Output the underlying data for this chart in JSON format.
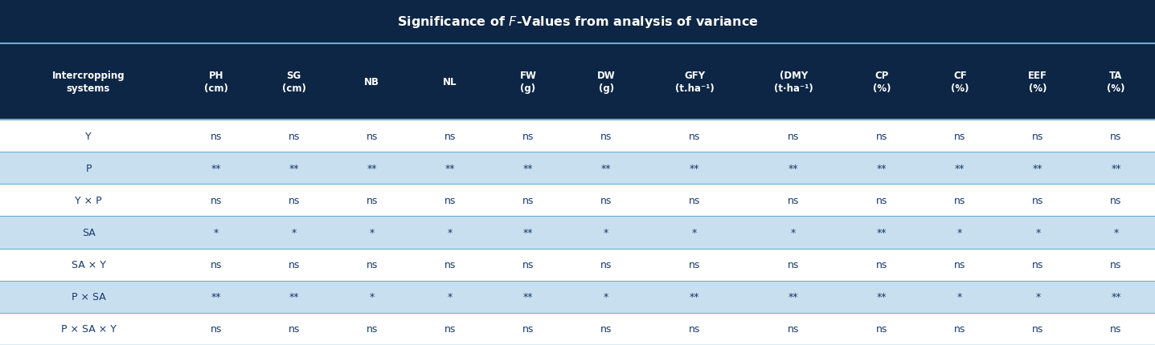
{
  "col_labels": [
    "Intercropping\nsystems",
    "PH\n(cm)",
    "SG\n(cm)",
    "NB",
    "NL",
    "FW\n(g)",
    "DW\n(g)",
    "GFY\n(t.ha⁻¹)",
    "(DMY\n(t·ha⁻¹)",
    "CP\n(%)",
    "CF\n(%)",
    "EEF\n(%)",
    "TA\n(%)"
  ],
  "rows": [
    [
      "Y",
      "ns",
      "ns",
      "ns",
      "ns",
      "ns",
      "ns",
      "ns",
      "ns",
      "ns",
      "ns",
      "ns",
      "ns"
    ],
    [
      "P",
      "**",
      "**",
      "**",
      "**",
      "**",
      "**",
      "**",
      "**",
      "**",
      "**",
      "**",
      "**"
    ],
    [
      "Y × P",
      "ns",
      "ns",
      "ns",
      "ns",
      "ns",
      "ns",
      "ns",
      "ns",
      "ns",
      "ns",
      "ns",
      "ns"
    ],
    [
      "SA",
      "*",
      "*",
      "*",
      "*",
      "**",
      "*",
      "*",
      "*",
      "**",
      "*",
      "*",
      "*"
    ],
    [
      "SA × Y",
      "ns",
      "ns",
      "ns",
      "ns",
      "ns",
      "ns",
      "ns",
      "ns",
      "ns",
      "ns",
      "ns",
      "ns"
    ],
    [
      "P × SA",
      "**",
      "**",
      "*",
      "*",
      "**",
      "*",
      "**",
      "**",
      "**",
      "*",
      "*",
      "**"
    ],
    [
      "P × SA × Y",
      "ns",
      "ns",
      "ns",
      "ns",
      "ns",
      "ns",
      "ns",
      "ns",
      "ns",
      "ns",
      "ns",
      "ns"
    ]
  ],
  "shaded_rows": [
    1,
    3,
    5
  ],
  "title_bg": "#0d2645",
  "header_bg": "#0d2645",
  "header_fg": "#ffffff",
  "row_bg_white": "#ffffff",
  "row_bg_blue": "#c8dff0",
  "divider_color": "#6aadcf",
  "text_color_data": "#1a3a6b",
  "col_widths": [
    1.7,
    0.75,
    0.75,
    0.75,
    0.75,
    0.75,
    0.75,
    0.95,
    0.95,
    0.75,
    0.75,
    0.75,
    0.75
  ]
}
